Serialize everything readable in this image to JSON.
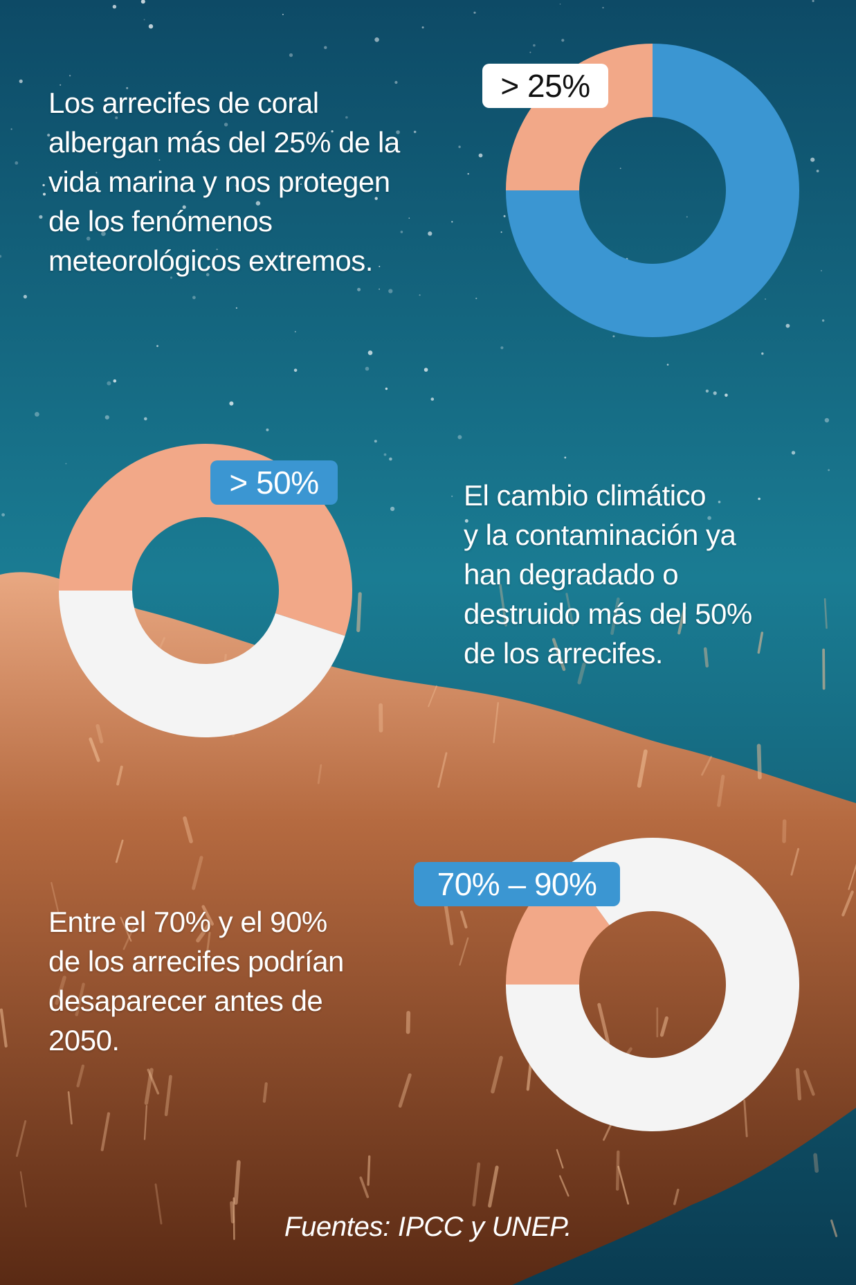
{
  "colors": {
    "water_top": "#0d4a66",
    "water_mid": "#1a7c93",
    "coral": "#b56a40",
    "coral_light": "#e9a882",
    "chart_blue": "#3b96d2",
    "chart_peach": "#f2a888",
    "chart_white": "#f4f4f4",
    "pill_light": "#ffffff",
    "pill_blue": "#3b96d2"
  },
  "texts": {
    "block1": [
      "Los arrecifes de coral",
      "albergan más del 25% de la",
      "vida marina y nos protegen",
      "de los fenómenos",
      "meteorológicos extremos."
    ],
    "block2": [
      "El cambio climático",
      "y la contaminación ya",
      "han degradado o",
      "destruido más del 50%",
      "de los arrecifes."
    ],
    "block3": [
      "Entre el 70% y el 90%",
      "de los arrecifes podrían",
      "desaparecer antes de",
      "2050."
    ],
    "footer": "Fuentes: IPCC y UNEP."
  },
  "chart_data": [
    {
      "type": "pie",
      "label": "> 25%",
      "label_style": "light",
      "slices": [
        {
          "value": 25,
          "color": "#f2a888"
        },
        {
          "value": 75,
          "color": "#3b96d2"
        }
      ]
    },
    {
      "type": "pie",
      "label": "> 50%",
      "label_style": "blue",
      "slices": [
        {
          "value": 55,
          "color": "#f2a888"
        },
        {
          "value": 45,
          "color": "#f4f4f4"
        }
      ]
    },
    {
      "type": "pie",
      "label": "70% – 90%",
      "label_style": "blue",
      "slices": [
        {
          "value": 15,
          "color": "#f2a888"
        },
        {
          "value": 85,
          "color": "#f4f4f4"
        }
      ]
    }
  ]
}
